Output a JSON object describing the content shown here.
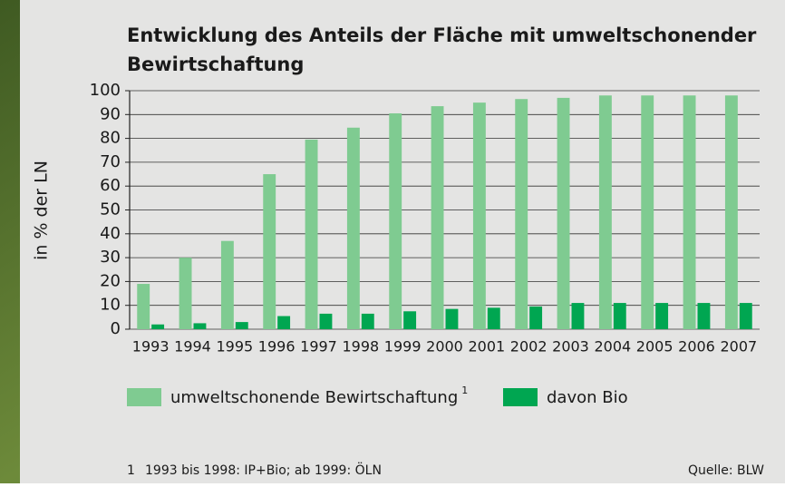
{
  "chart_data": {
    "type": "bar",
    "title": "Entwicklung des Anteils der Fläche mit umweltschonender",
    "title_line2": "Bewirtschaftung",
    "y_label": "in % der LN",
    "categories": [
      "1993",
      "1994",
      "1995",
      "1996",
      "1997",
      "1998",
      "1999",
      "2000",
      "2001",
      "2002",
      "2003",
      "2004",
      "2005",
      "2006",
      "2007"
    ],
    "series": [
      {
        "name": "umweltschonende Bewirtschaftung",
        "footnote_ref": "1",
        "color": "#7fcb91",
        "values": [
          19,
          30,
          37,
          65,
          79.5,
          84.5,
          90.5,
          93.5,
          95,
          96.5,
          97,
          98,
          98,
          98,
          98
        ]
      },
      {
        "name": "davon Bio",
        "color": "#00a651",
        "values": [
          2,
          2.5,
          3,
          5.5,
          6.5,
          6.5,
          7.5,
          8.5,
          9,
          9.5,
          11,
          11,
          11,
          11,
          11
        ]
      }
    ],
    "ylim": [
      0,
      100
    ],
    "yticks": [
      0,
      10,
      20,
      30,
      40,
      50,
      60,
      70,
      80,
      90,
      100
    ],
    "grid": true,
    "footnote_number": "1",
    "footnote": "1993 bis 1998: IP+Bio; ab 1999: ÖLN",
    "source": "Quelle: BLW"
  }
}
